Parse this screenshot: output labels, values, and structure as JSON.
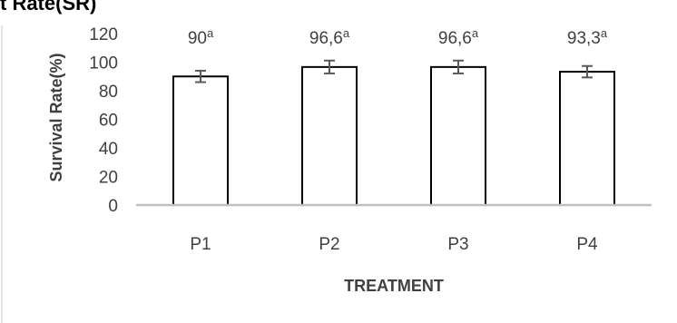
{
  "page": {
    "cut_title": "t Rate(SR)"
  },
  "chart_data": {
    "type": "bar",
    "title": "",
    "xlabel": "TREATMENT",
    "ylabel": "Survival Rate(%)",
    "categories": [
      "P1",
      "P2",
      "P3",
      "P4"
    ],
    "values": [
      90,
      96.6,
      96.6,
      93.3
    ],
    "error": [
      4,
      4.5,
      4.5,
      4
    ],
    "labels": [
      {
        "value": "90",
        "sup": "a"
      },
      {
        "value": "96,6",
        "sup": "a"
      },
      {
        "value": "96,6",
        "sup": "a"
      },
      {
        "value": "93,3",
        "sup": "a"
      }
    ],
    "ylim": [
      0,
      120
    ],
    "yticks": [
      "0",
      "20",
      "40",
      "60",
      "80",
      "100",
      "120"
    ],
    "grid": false,
    "colors": {
      "bar_fill": "#ffffff",
      "bar_stroke": "#000000",
      "axis": "#bfbfbf",
      "text": "#404040",
      "error_bar": "#595959",
      "frame": "#d9d9d9"
    }
  }
}
